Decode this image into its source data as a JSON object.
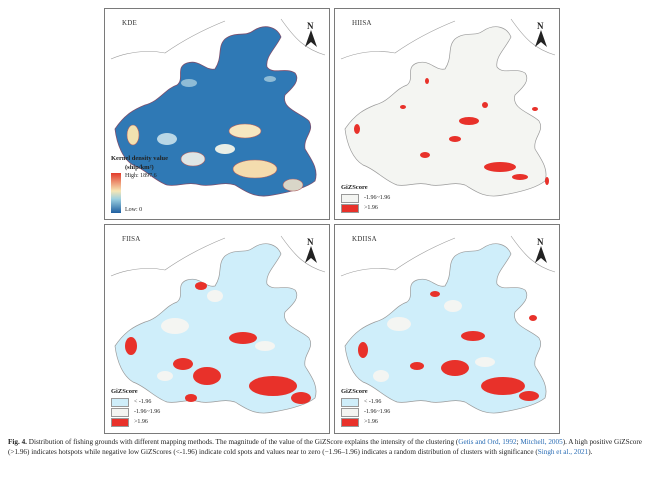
{
  "panels": {
    "kde": {
      "title": "KDE",
      "north": "N",
      "legend_title": "Kernel density value",
      "legend_unit": "(ship/km²)",
      "high": "High: 1897.6",
      "low": "Low: 0"
    },
    "hiisa": {
      "title": "HIISA",
      "north": "N",
      "legend_title": "GiZScore",
      "items": [
        "-1.96~1.96",
        ">1.96"
      ]
    },
    "fiisa": {
      "title": "FIISA",
      "north": "N",
      "legend_title": "GiZScore",
      "items": [
        "< -1.96",
        "-1.96~1.96",
        ">1.96"
      ]
    },
    "kdiisa": {
      "title": "KDIISA",
      "north": "N",
      "legend_title": "GiZScore",
      "items": [
        "< -1.96",
        "-1.96~1.96",
        ">1.96"
      ]
    }
  },
  "colors": {
    "sea_blue": "#2f79b5",
    "hot": "#e8312a",
    "cold": "#cfeefa",
    "neutral": "#f4f5f2",
    "land_line": "#9a9a9a"
  },
  "caption": {
    "label": "Fig. 4.",
    "t1": " Distribution of fishing grounds with different mapping methods. The magnitude of the value of the GiZScore explains the intensity of the clustering (",
    "c1": "Getis and Ord, 1992",
    "t2": "; ",
    "c2": "Mitchell, 2005",
    "t3": "). A high positive GiZScore (>1.96) indicates hotspots while negative low GiZScores (<-1.96) indicate cold spots and values near to zero (−1.96–1.96) indicates a random distribution of clusters with significance (",
    "c3": "Singh et al., 2021",
    "t4": ")."
  }
}
